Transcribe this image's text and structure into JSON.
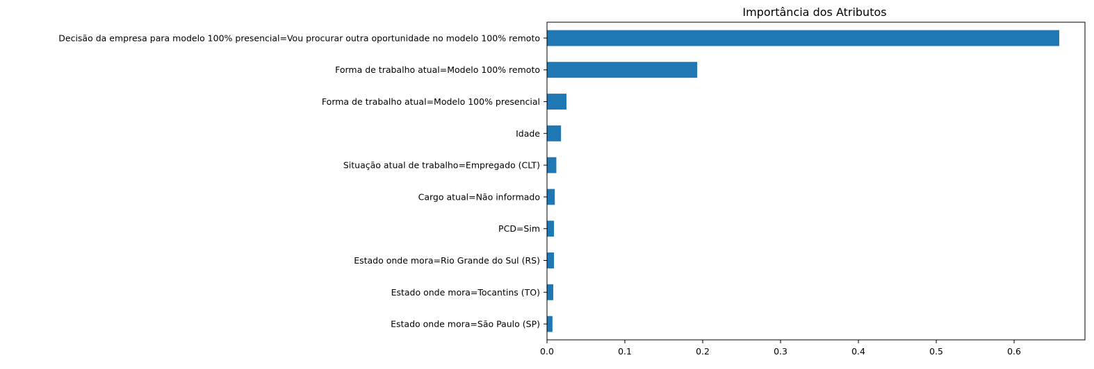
{
  "chart_data": {
    "type": "bar",
    "orientation": "horizontal",
    "title": "Importância dos Atributos",
    "xlabel": "",
    "ylabel": "",
    "xlim": [
      0,
      0.691
    ],
    "grid": false,
    "legend": "none",
    "bar_color": "#1f77b4",
    "x_ticks": [
      "0.0",
      "0.1",
      "0.2",
      "0.3",
      "0.4",
      "0.5",
      "0.6"
    ],
    "x_tick_values": [
      0,
      0.1,
      0.2,
      0.3,
      0.4,
      0.5,
      0.6
    ],
    "categories": [
      "Decisão da empresa para modelo 100% presencial=Vou procurar outra oportunidade no modelo 100% remoto",
      "Forma de trabalho atual=Modelo 100% remoto",
      "Forma de trabalho atual=Modelo 100% presencial",
      "Idade",
      "Situação atual de trabalho=Empregado (CLT)",
      "Cargo atual=Não informado",
      "PCD=Sim",
      "Estado onde mora=Rio Grande do Sul (RS)",
      "Estado onde mora=Tocantins (TO)",
      "Estado onde mora=São Paulo (SP)"
    ],
    "values": [
      0.658,
      0.193,
      0.025,
      0.018,
      0.012,
      0.01,
      0.009,
      0.009,
      0.008,
      0.007
    ]
  }
}
